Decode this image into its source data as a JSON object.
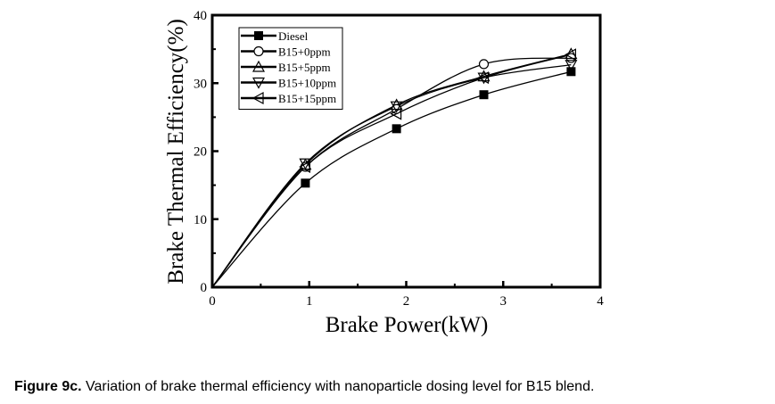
{
  "chart_data": {
    "type": "line",
    "title": "",
    "xlabel": "Brake Power(kW)",
    "ylabel": "Brake Thermal Efficiency(%)",
    "xlim": [
      0,
      4
    ],
    "ylim": [
      0,
      40
    ],
    "xticks": [
      "0",
      "1",
      "2",
      "3",
      "4"
    ],
    "yticks": [
      "0",
      "10",
      "20",
      "30",
      "40"
    ],
    "xtick_values": [
      0,
      1,
      2,
      3,
      4
    ],
    "ytick_values": [
      0,
      10,
      20,
      30,
      40
    ],
    "grid": false,
    "legend_position": "top-left",
    "x": [
      0,
      0.96,
      1.9,
      2.8,
      3.7
    ],
    "series": [
      {
        "name": "Diesel",
        "marker": "square-filled",
        "values": [
          0,
          15.3,
          23.3,
          28.3,
          31.7
        ]
      },
      {
        "name": "B15+0ppm",
        "marker": "circle-open",
        "values": [
          0,
          17.7,
          26.2,
          32.8,
          33.7
        ]
      },
      {
        "name": "B15+5ppm",
        "marker": "triangle-up-open",
        "values": [
          0,
          18.0,
          26.8,
          31.0,
          34.3
        ]
      },
      {
        "name": "B15+10ppm",
        "marker": "triangle-down-open",
        "values": [
          0,
          18.2,
          26.6,
          30.8,
          32.7
        ]
      },
      {
        "name": "B15+15ppm",
        "marker": "triangle-left-open",
        "values": [
          0,
          17.7,
          25.5,
          30.8,
          34.2
        ]
      }
    ]
  },
  "caption": {
    "label": "Figure 9c.",
    "text": " Variation of brake thermal efficiency with nanoparticle dosing level for B15 blend."
  }
}
